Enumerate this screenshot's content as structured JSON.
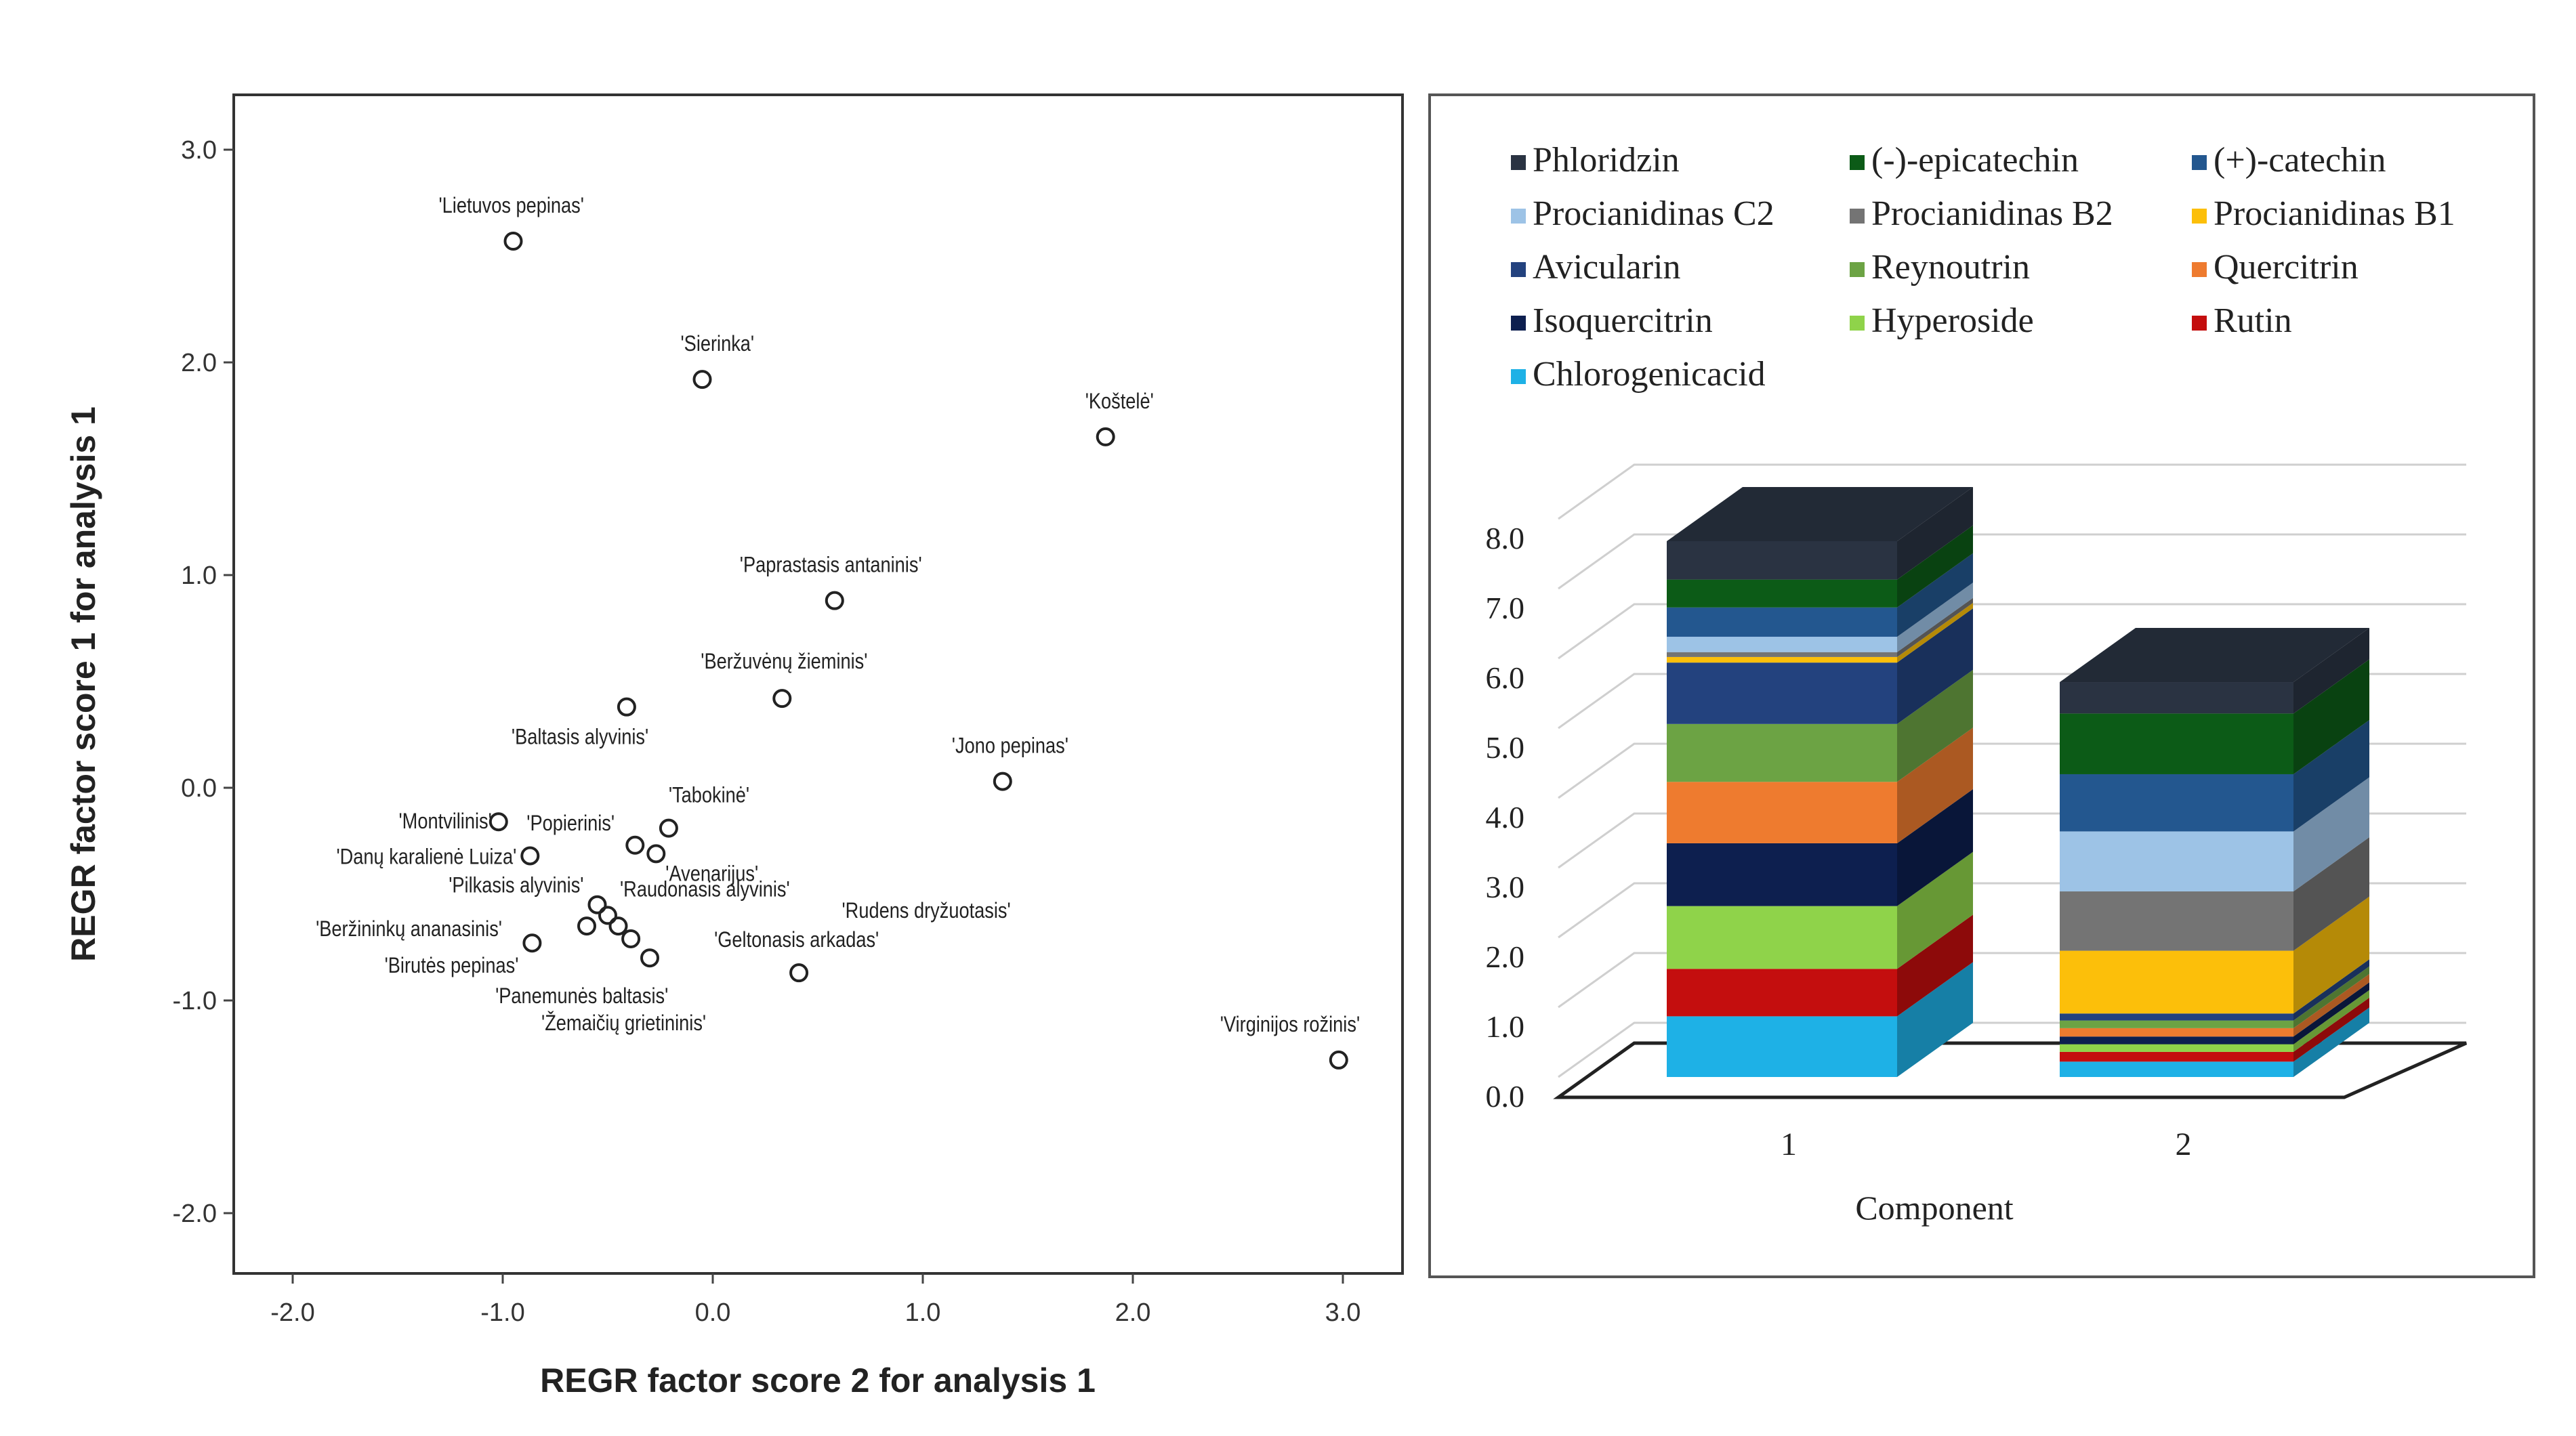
{
  "chart_data": [
    {
      "type": "scatter",
      "xlabel": "REGR factor score   2 for analysis 1",
      "ylabel": "REGR factor score   1 for analysis 1",
      "xlim": [
        -2.3,
        3.3
      ],
      "ylim": [
        -2.3,
        3.3
      ],
      "xticks": [
        -2.0,
        -1.0,
        0.0,
        1.0,
        2.0,
        3.0
      ],
      "yticks": [
        -2.0,
        -1.0,
        0.0,
        1.0,
        2.0,
        3.0
      ],
      "points": [
        {
          "label": "'Lietuvos pepinas'",
          "x": -0.95,
          "y": 2.57
        },
        {
          "label": "'Sierinka'",
          "x": -0.05,
          "y": 1.92
        },
        {
          "label": "'Koštelė'",
          "x": 1.87,
          "y": 1.65
        },
        {
          "label": "'Paprastasis antaninis'",
          "x": 0.58,
          "y": 0.88
        },
        {
          "label": "'Beržuvėnų žieminis'",
          "x": 0.33,
          "y": 0.42
        },
        {
          "label": "'Baltasis alyvinis'",
          "x": -0.41,
          "y": 0.38
        },
        {
          "label": "'Jono pepinas'",
          "x": 1.38,
          "y": 0.03
        },
        {
          "label": "'Montvilinis'",
          "x": -1.02,
          "y": -0.16
        },
        {
          "label": "'Tabokinė'",
          "x": -0.21,
          "y": -0.19
        },
        {
          "label": "'Popierinis'",
          "x": -0.37,
          "y": -0.27
        },
        {
          "label": "'Avenarijus'",
          "x": -0.27,
          "y": -0.31
        },
        {
          "label": "'Danų karalienė Luiza'",
          "x": -0.87,
          "y": -0.32
        },
        {
          "label": "'Pilkasis alyvinis'",
          "x": -0.55,
          "y": -0.55
        },
        {
          "label": "'Raudonasis alyvinis'",
          "x": -0.5,
          "y": -0.6
        },
        {
          "label": "'Rudens dryžuotasis'",
          "x": -0.45,
          "y": -0.65
        },
        {
          "label": "'Beržininkų ananasinis'",
          "x": -0.6,
          "y": -0.65
        },
        {
          "label": "'Panemunės baltasis'",
          "x": -0.39,
          "y": -0.71
        },
        {
          "label": "'Birutės pepinas'",
          "x": -0.86,
          "y": -0.73
        },
        {
          "label": "'Žemaičių grietininis'",
          "x": -0.3,
          "y": -0.8
        },
        {
          "label": "'Geltonasis arkadas'",
          "x": 0.41,
          "y": -0.87
        },
        {
          "label": "'Virginijos rožinis'",
          "x": 2.98,
          "y": -1.28
        }
      ]
    },
    {
      "type": "bar",
      "stacked": true,
      "style": "3d",
      "xlabel": "Component",
      "categories": [
        "1",
        "2"
      ],
      "ylim": [
        0,
        8
      ],
      "yticks": [
        "0.0",
        "1.0",
        "2.0",
        "3.0",
        "4.0",
        "5.0",
        "6.0",
        "7.0",
        "8.0"
      ],
      "series": [
        {
          "name": "Chlorogenicacid",
          "color": "#1eb1e6",
          "values": [
            0.87,
            0.22
          ]
        },
        {
          "name": "Rutin",
          "color": "#c40e0e",
          "values": [
            0.68,
            0.14
          ]
        },
        {
          "name": "Hyperoside",
          "color": "#8fd34a",
          "values": [
            0.9,
            0.11
          ]
        },
        {
          "name": "Isoquercitrin",
          "color": "#0d1f4f",
          "values": [
            0.9,
            0.11
          ]
        },
        {
          "name": "Quercitrin",
          "color": "#ee7b2f",
          "values": [
            0.88,
            0.12
          ]
        },
        {
          "name": "Reynoutrin",
          "color": "#6ca344",
          "values": [
            0.83,
            0.11
          ]
        },
        {
          "name": "Avicularin",
          "color": "#23427e",
          "values": [
            0.88,
            0.1
          ]
        },
        {
          "name": "Procianidinas B1",
          "color": "#fcbf0a",
          "values": [
            0.08,
            0.9
          ]
        },
        {
          "name": "Procianidinas B2",
          "color": "#747474",
          "values": [
            0.07,
            0.85
          ]
        },
        {
          "name": "Procianidinas C2",
          "color": "#9dc3e6",
          "values": [
            0.22,
            0.86
          ]
        },
        {
          "name": "(+)-catechin",
          "color": "#23578f",
          "values": [
            0.42,
            0.82
          ]
        },
        {
          "name": "(-)-epicatechin",
          "color": "#0c5b17",
          "values": [
            0.4,
            0.87
          ]
        },
        {
          "name": "Phloridzin",
          "color": "#2a3342",
          "values": [
            0.55,
            0.45
          ]
        }
      ]
    }
  ],
  "legend": [
    {
      "label": "Phloridzin",
      "color": "#2a3342"
    },
    {
      "label": "(-)-epicatechin",
      "color": "#0c5b17"
    },
    {
      "label": "(+)-catechin",
      "color": "#23578f"
    },
    {
      "label": "Procianidinas C2",
      "color": "#9dc3e6"
    },
    {
      "label": "Procianidinas B2",
      "color": "#747474"
    },
    {
      "label": "Procianidinas B1",
      "color": "#fcbf0a"
    },
    {
      "label": "Avicularin",
      "color": "#23427e"
    },
    {
      "label": "Reynoutrin",
      "color": "#6ca344"
    },
    {
      "label": "Quercitrin",
      "color": "#ee7b2f"
    },
    {
      "label": "Isoquercitrin",
      "color": "#0d1f4f"
    },
    {
      "label": "Hyperoside",
      "color": "#8fd34a"
    },
    {
      "label": "Rutin",
      "color": "#c40e0e"
    },
    {
      "label": "Chlorogenicacid",
      "color": "#1eb1e6"
    }
  ]
}
